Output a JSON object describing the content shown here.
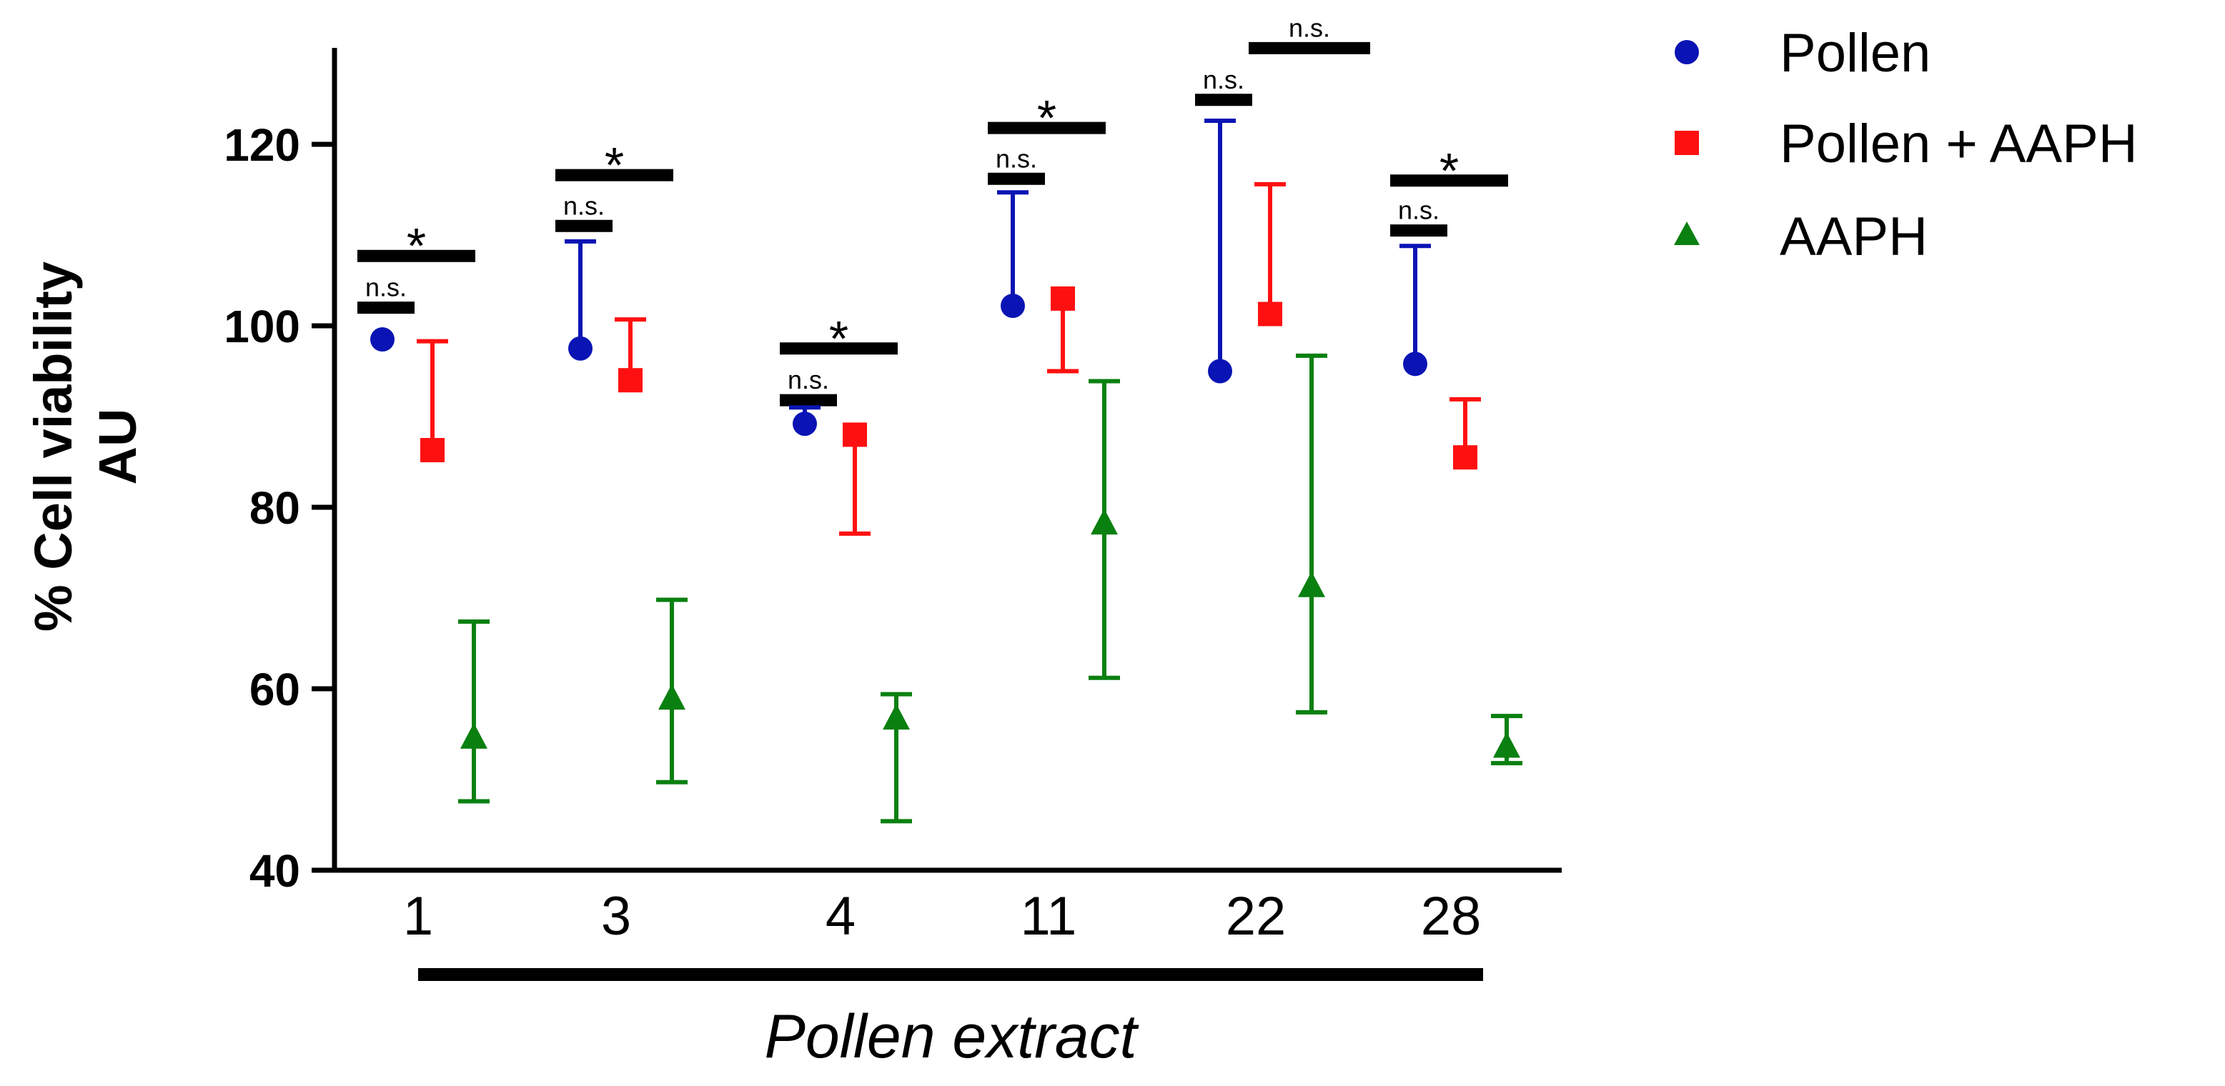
{
  "chart_data": {
    "type": "scatter",
    "categories": [
      "1",
      "3",
      "4",
      "11",
      "22",
      "28"
    ],
    "xlabel": "Pollen extract",
    "ylabel_lines": [
      "% Cell viability",
      "AU"
    ],
    "ylim": [
      40,
      130
    ],
    "yticks": [
      40,
      60,
      80,
      100,
      120
    ],
    "legend_position": "top-right",
    "series": [
      {
        "name": "Pollen",
        "marker": "circle",
        "color": "#0a14b4",
        "values": [
          98.5,
          97.5,
          89.2,
          102.2,
          95.0,
          95.8
        ],
        "upper": [
          98.5,
          109.3,
          91.0,
          114.7,
          122.6,
          108.8
        ]
      },
      {
        "name": "Pollen + AAPH",
        "marker": "square",
        "color": "#ff1010",
        "values": [
          86.3,
          94.0,
          88.0,
          103.0,
          101.3,
          85.5
        ],
        "upper": [
          98.3,
          100.7,
          88.0,
          103.0,
          115.6,
          91.9
        ],
        "lower": [
          86.3,
          94.0,
          77.1,
          95.0,
          101.3,
          85.5
        ]
      },
      {
        "name": "AAPH",
        "marker": "triangle",
        "color": "#0a8010",
        "values": [
          54.5,
          58.8,
          56.6,
          78.1,
          71.2,
          53.5
        ],
        "upper": [
          67.4,
          69.8,
          59.4,
          93.9,
          96.7,
          57.0
        ],
        "lower": [
          47.6,
          49.7,
          45.4,
          61.2,
          57.4,
          51.8
        ]
      }
    ],
    "significance": [
      {
        "category": "1",
        "ns_y": 102.0,
        "star_y": 107.7,
        "ns_label": "n.s.",
        "star_label": "*"
      },
      {
        "category": "3",
        "ns_y": 111.0,
        "star_y": 116.6,
        "ns_label": "n.s.",
        "star_label": "*"
      },
      {
        "category": "4",
        "ns_y": 91.8,
        "star_y": 97.5,
        "ns_label": "n.s.",
        "star_label": "*"
      },
      {
        "category": "11",
        "ns_y": 116.2,
        "star_y": 121.8,
        "ns_label": "n.s.",
        "star_label": "*"
      },
      {
        "category": "22",
        "ns_y": 124.9,
        "star_y": 130.6,
        "ns_label": "n.s.",
        "star_label": "n.s."
      },
      {
        "category": "28",
        "ns_y": 110.5,
        "star_y": 116.0,
        "ns_label": "n.s.",
        "star_label": "*"
      }
    ]
  }
}
